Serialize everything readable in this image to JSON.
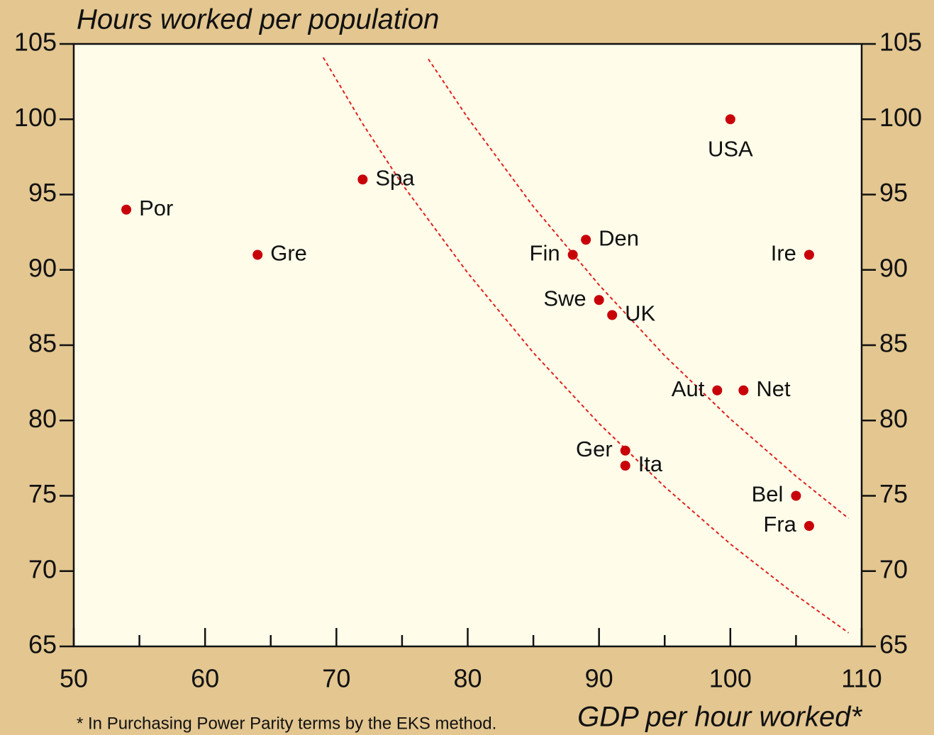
{
  "chart_data": {
    "type": "scatter",
    "title": "Hours worked per population",
    "x_label": "GDP per hour worked*",
    "footnote": "* In Purchasing Power Parity terms by the EKS method.",
    "labels": [
      "Por",
      "Gre",
      "Spa",
      "Fin",
      "Den",
      "Swe",
      "UK",
      "USA",
      "Ire",
      "Aut",
      "Net",
      "Ger",
      "Ita",
      "Bel",
      "Fra"
    ],
    "x": [
      54,
      64,
      72,
      88,
      89,
      90,
      91,
      100,
      106,
      99,
      101,
      92,
      92,
      105,
      106
    ],
    "values": [
      94,
      91,
      96,
      91,
      92,
      88,
      87,
      100,
      91,
      82,
      82,
      78,
      77,
      75,
      73
    ],
    "color": "#c8000a",
    "curves": [
      {
        "color": "#e0201e",
        "x": [
          69,
          72,
          75,
          80,
          85,
          90,
          95,
          100,
          105,
          109
        ],
        "values": [
          104.1,
          99.7,
          95.7,
          89.8,
          84.5,
          79.8,
          75.6,
          71.8,
          68.4,
          65.9
        ]
      },
      {
        "color": "#e0201e",
        "x": [
          77,
          80,
          85,
          90,
          95,
          100,
          105,
          109
        ],
        "values": [
          104.0,
          100.1,
          94.2,
          89.0,
          84.3,
          80.1,
          76.3,
          73.5
        ]
      }
    ],
    "xlim": [
      50,
      110
    ],
    "xticks": [
      50,
      60,
      70,
      80,
      90,
      100,
      110
    ],
    "xminor_ticks": [
      55,
      65,
      75,
      85,
      95,
      105
    ],
    "ylim": [
      65,
      105
    ],
    "yticks": [
      65,
      70,
      75,
      80,
      85,
      90,
      95,
      100,
      105
    ],
    "y2lim": [
      65,
      105
    ],
    "y2ticks": [
      65,
      70,
      75,
      80,
      85,
      90,
      95,
      100,
      105
    ]
  }
}
